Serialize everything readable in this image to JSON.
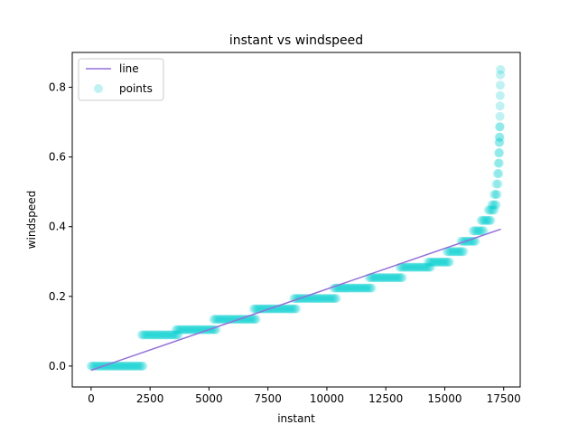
{
  "chart_data": {
    "type": "scatter",
    "title": "instant vs windspeed",
    "xlabel": "instant",
    "ylabel": "windspeed",
    "xlim": [
      -800,
      18200
    ],
    "ylim": [
      -0.06,
      0.9
    ],
    "xticks": [
      0,
      2500,
      5000,
      7500,
      10000,
      12500,
      15000,
      17500
    ],
    "xtick_labels": [
      "0",
      "2500",
      "5000",
      "7500",
      "10000",
      "12500",
      "15000",
      "17500"
    ],
    "yticks": [
      0.0,
      0.2,
      0.4,
      0.6,
      0.8
    ],
    "ytick_labels": [
      "0.0",
      "0.2",
      "0.4",
      "0.6",
      "0.8"
    ],
    "grid": false,
    "legend": {
      "placement": "top-left",
      "entries": [
        "line",
        "points"
      ]
    },
    "colors": {
      "line": "#9370DB",
      "points": "#00CED1"
    },
    "series": [
      {
        "name": "line",
        "kind": "line",
        "x": [
          0,
          17379
        ],
        "y": [
          -0.012,
          0.393
        ]
      },
      {
        "name": "points",
        "kind": "scatter",
        "segments": [
          {
            "x_start": 0,
            "x_end": 2200,
            "y": 0.0
          },
          {
            "x_start": 2150,
            "x_end": 3700,
            "y": 0.0896
          },
          {
            "x_start": 3600,
            "x_end": 5300,
            "y": 0.1045
          },
          {
            "x_start": 5200,
            "x_end": 7000,
            "y": 0.1343
          },
          {
            "x_start": 6900,
            "x_end": 8700,
            "y": 0.1642
          },
          {
            "x_start": 8600,
            "x_end": 10400,
            "y": 0.194
          },
          {
            "x_start": 10300,
            "x_end": 11900,
            "y": 0.2239
          },
          {
            "x_start": 11800,
            "x_end": 13200,
            "y": 0.2537
          },
          {
            "x_start": 13100,
            "x_end": 14400,
            "y": 0.2836
          },
          {
            "x_start": 14300,
            "x_end": 15200,
            "y": 0.2985
          },
          {
            "x_start": 15100,
            "x_end": 15800,
            "y": 0.3284
          },
          {
            "x_start": 15700,
            "x_end": 16300,
            "y": 0.3582
          },
          {
            "x_start": 16200,
            "x_end": 16650,
            "y": 0.3881
          },
          {
            "x_start": 16550,
            "x_end": 16950,
            "y": 0.4179
          },
          {
            "x_start": 16850,
            "x_end": 17100,
            "y": 0.4478
          },
          {
            "x_start": 17000,
            "x_end": 17180,
            "y": 0.4627
          },
          {
            "x_start": 17100,
            "x_end": 17220,
            "y": 0.4925
          },
          {
            "x_start": 17180,
            "x_end": 17260,
            "y": 0.5224
          },
          {
            "x_start": 17240,
            "x_end": 17290,
            "y": 0.5522
          },
          {
            "x_start": 17270,
            "x_end": 17310,
            "y": 0.5821
          },
          {
            "x_start": 17290,
            "x_end": 17320,
            "y": 0.6119
          },
          {
            "x_start": 17305,
            "x_end": 17330,
            "y": 0.6418
          },
          {
            "x_start": 17315,
            "x_end": 17340,
            "y": 0.6567
          },
          {
            "x_start": 17325,
            "x_end": 17345,
            "y": 0.6866
          }
        ],
        "sparse_points": [
          {
            "x": 17340,
            "y": 0.7164
          },
          {
            "x": 17345,
            "y": 0.7463
          },
          {
            "x": 17350,
            "y": 0.7761
          },
          {
            "x": 17355,
            "y": 0.806
          },
          {
            "x": 17360,
            "y": 0.8358
          },
          {
            "x": 17365,
            "y": 0.8507
          }
        ]
      }
    ]
  }
}
